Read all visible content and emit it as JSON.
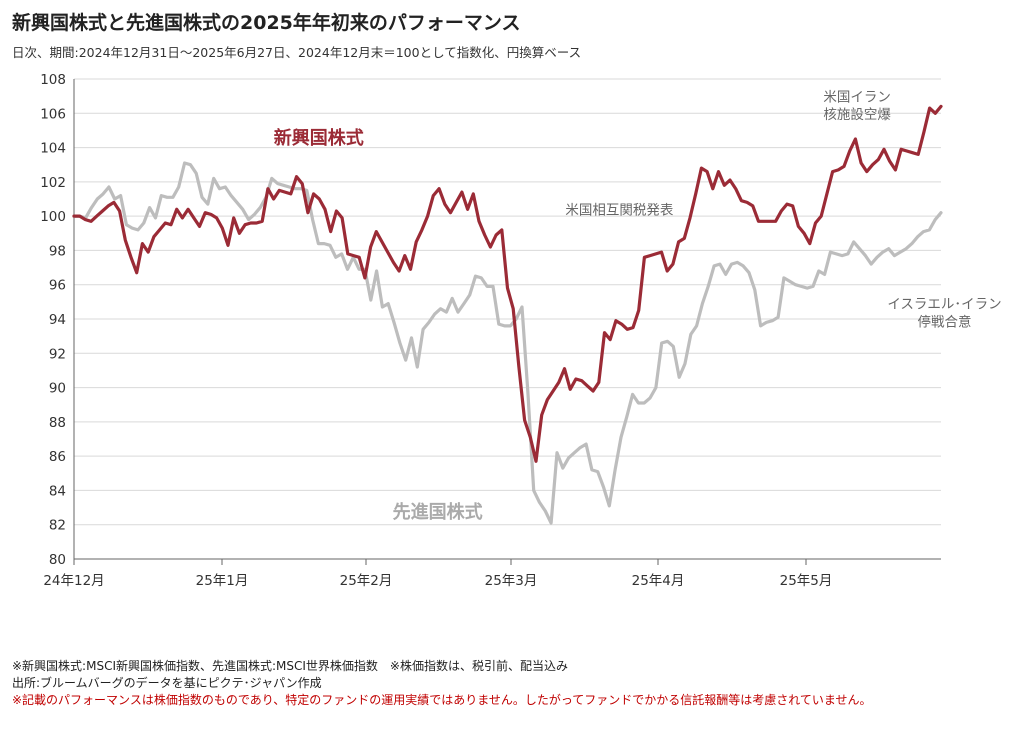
{
  "header": {
    "title": "新興国株式と先進国株式の2025年年初来のパフォーマンス",
    "subtitle": "日次、期間:2024年12月31日～2025年6月27日、2024年12月末＝100として指数化、円換算ベース"
  },
  "chart_data": {
    "type": "line",
    "x_ticks": [
      "24年12月",
      "25年1月",
      "25年2月",
      "25年3月",
      "25年4月",
      "25年5月"
    ],
    "x_domain": [
      0,
      124
    ],
    "ylim": [
      80,
      108
    ],
    "y_ticks": [
      80,
      82,
      84,
      86,
      88,
      90,
      92,
      94,
      96,
      98,
      100,
      102,
      104,
      106,
      108
    ],
    "grid": true,
    "series": [
      {
        "name": "新興国株式",
        "color": "#9b2b36",
        "values": [
          100,
          100,
          99.8,
          99.7,
          100,
          100.3,
          100.6,
          100.8,
          100.3,
          98.6,
          97.6,
          96.7,
          98.4,
          97.9,
          98.8,
          99.2,
          99.6,
          99.5,
          100.4,
          99.9,
          100.4,
          99.9,
          99.4,
          100.2,
          100.1,
          99.9,
          99.3,
          98.3,
          99.9,
          99,
          99.5,
          99.6,
          99.6,
          99.7,
          101.6,
          101,
          101.5,
          101.4,
          101.3,
          102.3,
          101.9,
          100.2,
          101.3,
          101,
          100.4,
          99.1,
          100.3,
          99.9,
          97.8,
          97.7,
          97.6,
          96.4,
          98.2,
          99.1,
          98.5,
          97.9,
          97.3,
          96.8,
          97.7,
          96.9,
          98.5,
          99.2,
          100,
          101.2,
          101.6,
          100.7,
          100.2,
          100.8,
          101.4,
          100.4,
          101.3,
          99.7,
          98.9,
          98.2,
          98.9,
          99.2,
          95.8,
          94.6,
          91.2,
          88.1,
          87.1,
          85.7,
          88.4,
          89.3,
          89.8,
          90.3,
          91.1,
          89.9,
          90.5,
          90.4,
          90.1,
          89.8,
          90.3,
          93.2,
          92.8,
          93.9,
          93.7,
          93.4,
          93.5,
          94.5,
          97.6,
          97.7,
          97.8,
          97.9,
          96.8,
          97.2,
          98.5,
          98.7,
          99.9,
          101.3,
          102.8,
          102.6,
          101.6,
          102.6,
          101.8,
          102.1,
          101.6,
          100.9,
          100.8,
          100.6,
          99.7,
          99.7,
          99.7,
          99.7,
          100.3,
          100.7,
          100.6,
          99.4,
          99,
          98.4,
          99.6,
          100,
          101.3,
          102.6,
          102.7,
          102.9,
          103.8,
          104.5,
          103.1,
          102.6,
          103.0,
          103.3,
          103.9,
          103.2,
          102.7,
          103.9,
          103.8,
          103.7,
          103.6,
          104.9,
          106.3,
          106,
          106.4
        ]
      },
      {
        "name": "先進国株式",
        "color": "#bdbdbd",
        "values": [
          100,
          100,
          99.9,
          100.5,
          101,
          101.3,
          101.7,
          101,
          101.2,
          99.5,
          99.3,
          99.2,
          99.6,
          100.5,
          99.9,
          101.2,
          101.1,
          101.1,
          101.7,
          103.1,
          103,
          102.5,
          101.1,
          100.7,
          102.2,
          101.6,
          101.7,
          101.2,
          100.8,
          100.4,
          99.8,
          100.1,
          100.5,
          101.1,
          102.2,
          101.9,
          101.8,
          101.7,
          101.6,
          101.6,
          101.5,
          99.8,
          98.4,
          98.4,
          98.3,
          97.6,
          97.8,
          96.9,
          97.6,
          96.9,
          96.9,
          95.1,
          96.8,
          94.7,
          94.9,
          93.8,
          92.6,
          91.6,
          92.9,
          91.2,
          93.4,
          93.8,
          94.3,
          94.6,
          94.4,
          95.2,
          94.4,
          94.9,
          95.4,
          96.5,
          96.4,
          95.9,
          95.9,
          93.7,
          93.6,
          93.6,
          94,
          94.7,
          89.7,
          84,
          83.3,
          82.8,
          82.1,
          86.2,
          85.3,
          85.9,
          86.2,
          86.5,
          86.7,
          85.2,
          85.1,
          84.2,
          83.1,
          85.2,
          87.1,
          88.3,
          89.6,
          89.1,
          89.1,
          89.4,
          90,
          92.6,
          92.7,
          92.4,
          90.6,
          91.4,
          93.1,
          93.6,
          94.9,
          95.9,
          97.1,
          97.2,
          96.6,
          97.2,
          97.3,
          97.1,
          96.7,
          95.7,
          93.6,
          93.8,
          93.9,
          94.1,
          96.4,
          96.2,
          96,
          95.9,
          95.8,
          95.9,
          96.8,
          96.6,
          97.9,
          97.8,
          97.7,
          97.8,
          98.5,
          98.1,
          97.7,
          97.2,
          97.6,
          97.9,
          98.1,
          97.7,
          97.9,
          98.1,
          98.4,
          98.8,
          99.1,
          99.2,
          99.8,
          100.2
        ]
      }
    ],
    "annotations": [
      {
        "lines": [
          "新興国株式"
        ],
        "x": 35,
        "y": 104.2,
        "size": 18,
        "color": "#9b2b36",
        "bold": true
      },
      {
        "lines": [
          "先進国株式"
        ],
        "x": 52,
        "y": 82.4,
        "size": 18,
        "color": "#aaaaaa",
        "bold": true
      },
      {
        "lines": [
          "米国相互関税発表"
        ],
        "x": 78,
        "y": 100.1,
        "size": 13.5,
        "color": "#666666",
        "bold": false
      },
      {
        "lines": [
          "米国イラン",
          "核施設空爆"
        ],
        "x": 112,
        "y": 106.7,
        "size": 13.5,
        "color": "#666666",
        "bold": false
      },
      {
        "lines": [
          "イスラエル･イラン",
          "停戦合意"
        ],
        "x": 124.5,
        "y": 94.6,
        "size": 13.5,
        "color": "#666666",
        "bold": false
      }
    ]
  },
  "footnotes": {
    "line1": "※新興国株式:MSCI新興国株価指数、先進国株式:MSCI世界株価指数　※株価指数は、税引前、配当込み",
    "line2": "出所:ブルームバーグのデータを基にピクテ･ジャパン作成",
    "line3": "※記載のパフォーマンスは株価指数のものであり、特定のファンドの運用実績ではありません。したがってファンドでかかる信託報酬等は考慮されていません。"
  }
}
